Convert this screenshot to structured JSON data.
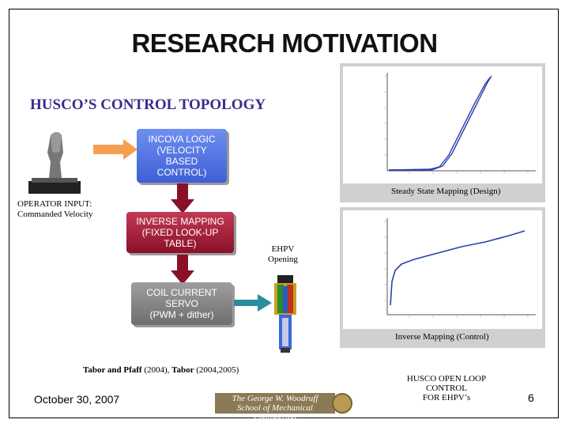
{
  "title": "RESEARCH MOTIVATION",
  "subtitle": "HUSCO’S CONTROL TOPOLOGY",
  "operator_label": [
    "OPERATOR INPUT:",
    "Commanded Velocity"
  ],
  "boxes": {
    "incova": [
      "INCOVA LOGIC",
      "(VELOCITY",
      "BASED",
      "CONTROL)"
    ],
    "inverse": [
      "INVERSE MAPPING",
      "(FIXED LOOK-UP",
      "TABLE)"
    ],
    "coil": [
      "COIL CURRENT",
      "SERVO",
      "(PWM + dither)"
    ]
  },
  "ehpv_label": [
    "EHPV",
    "Opening"
  ],
  "plot_captions": {
    "top": "Steady State Mapping (Design)",
    "bottom": "Inverse Mapping (Control)"
  },
  "reference": {
    "part1_name": "Tabor and Pfaff",
    "part1_year": " (2004), ",
    "part2_name": "Tabor",
    "part2_year": " (2004,2005)"
  },
  "husco_open_loop": [
    "HUSCO OPEN LOOP CONTROL",
    "FOR EHPV’s"
  ],
  "footer": {
    "date": "October 30, 2007",
    "page_number": "6",
    "school_line1": "The George W. Woodruff",
    "school_line2": "School of Mechanical Engineering"
  },
  "colors": {
    "subtitle": "#3a2a8c",
    "incova_box": "#4a6ae0",
    "inverse_box": "#a01c38",
    "coil_box": "#8a8a8a",
    "arrow_orange": "#f5a050",
    "arrow_red": "#8a1028",
    "arrow_teal": "#2a8c9c",
    "plot_line": "#2b3fb0"
  },
  "icons": [
    "joystick-icon",
    "ehpv-valve-icon",
    "school-seal-icon"
  ]
}
